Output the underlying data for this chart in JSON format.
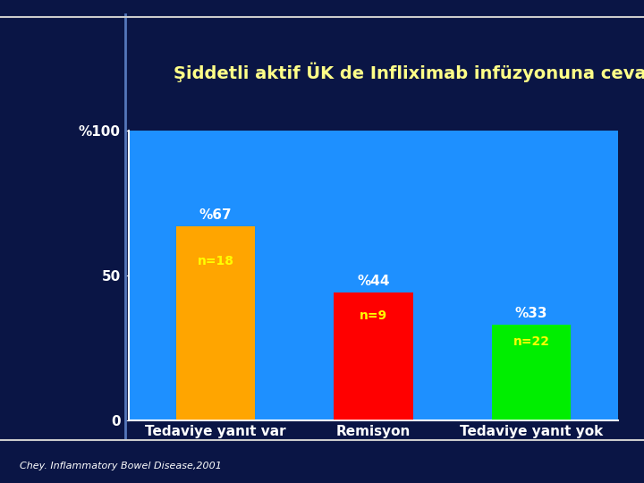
{
  "title": "Şiddetli aktif ÜK de Infliximab infüzyonuna cevap",
  "categories": [
    "Tedaviye yanıt var",
    "Remisyon",
    "Tedaviye yanıt yok"
  ],
  "values": [
    67,
    44,
    33
  ],
  "bar_colors": [
    "#FFA500",
    "#FF0000",
    "#00EE00"
  ],
  "bar_labels": [
    "%67",
    "%44",
    "%33"
  ],
  "bar_n_labels": [
    "n=18",
    "n=9",
    "n=22"
  ],
  "ytick_labels": [
    "%100",
    "50",
    "0"
  ],
  "ytick_values": [
    100,
    50,
    0
  ],
  "ylabel_color": "#FFFFFF",
  "background_slide": "#0a1545",
  "background_plot": "#1e90ff",
  "title_color": "#FFFF88",
  "xticklabel_color": "#FFFFFF",
  "n_label_color": "#FFFF00",
  "footer_text": "Chey. Inflammatory Bowel Disease,2001",
  "footer_color": "#FFFFFF",
  "ylim": [
    0,
    100
  ],
  "title_fontsize": 14,
  "bar_label_fontsize": 11,
  "bar_n_fontsize": 10,
  "xticklabel_fontsize": 11,
  "yticklabel_fontsize": 11,
  "footer_fontsize": 8,
  "top_line_color": "#CCCCCC",
  "bottom_line_color": "#CCCCCC",
  "vert_line_color": "#5577BB",
  "axis_line_color": "#FFFFFF"
}
